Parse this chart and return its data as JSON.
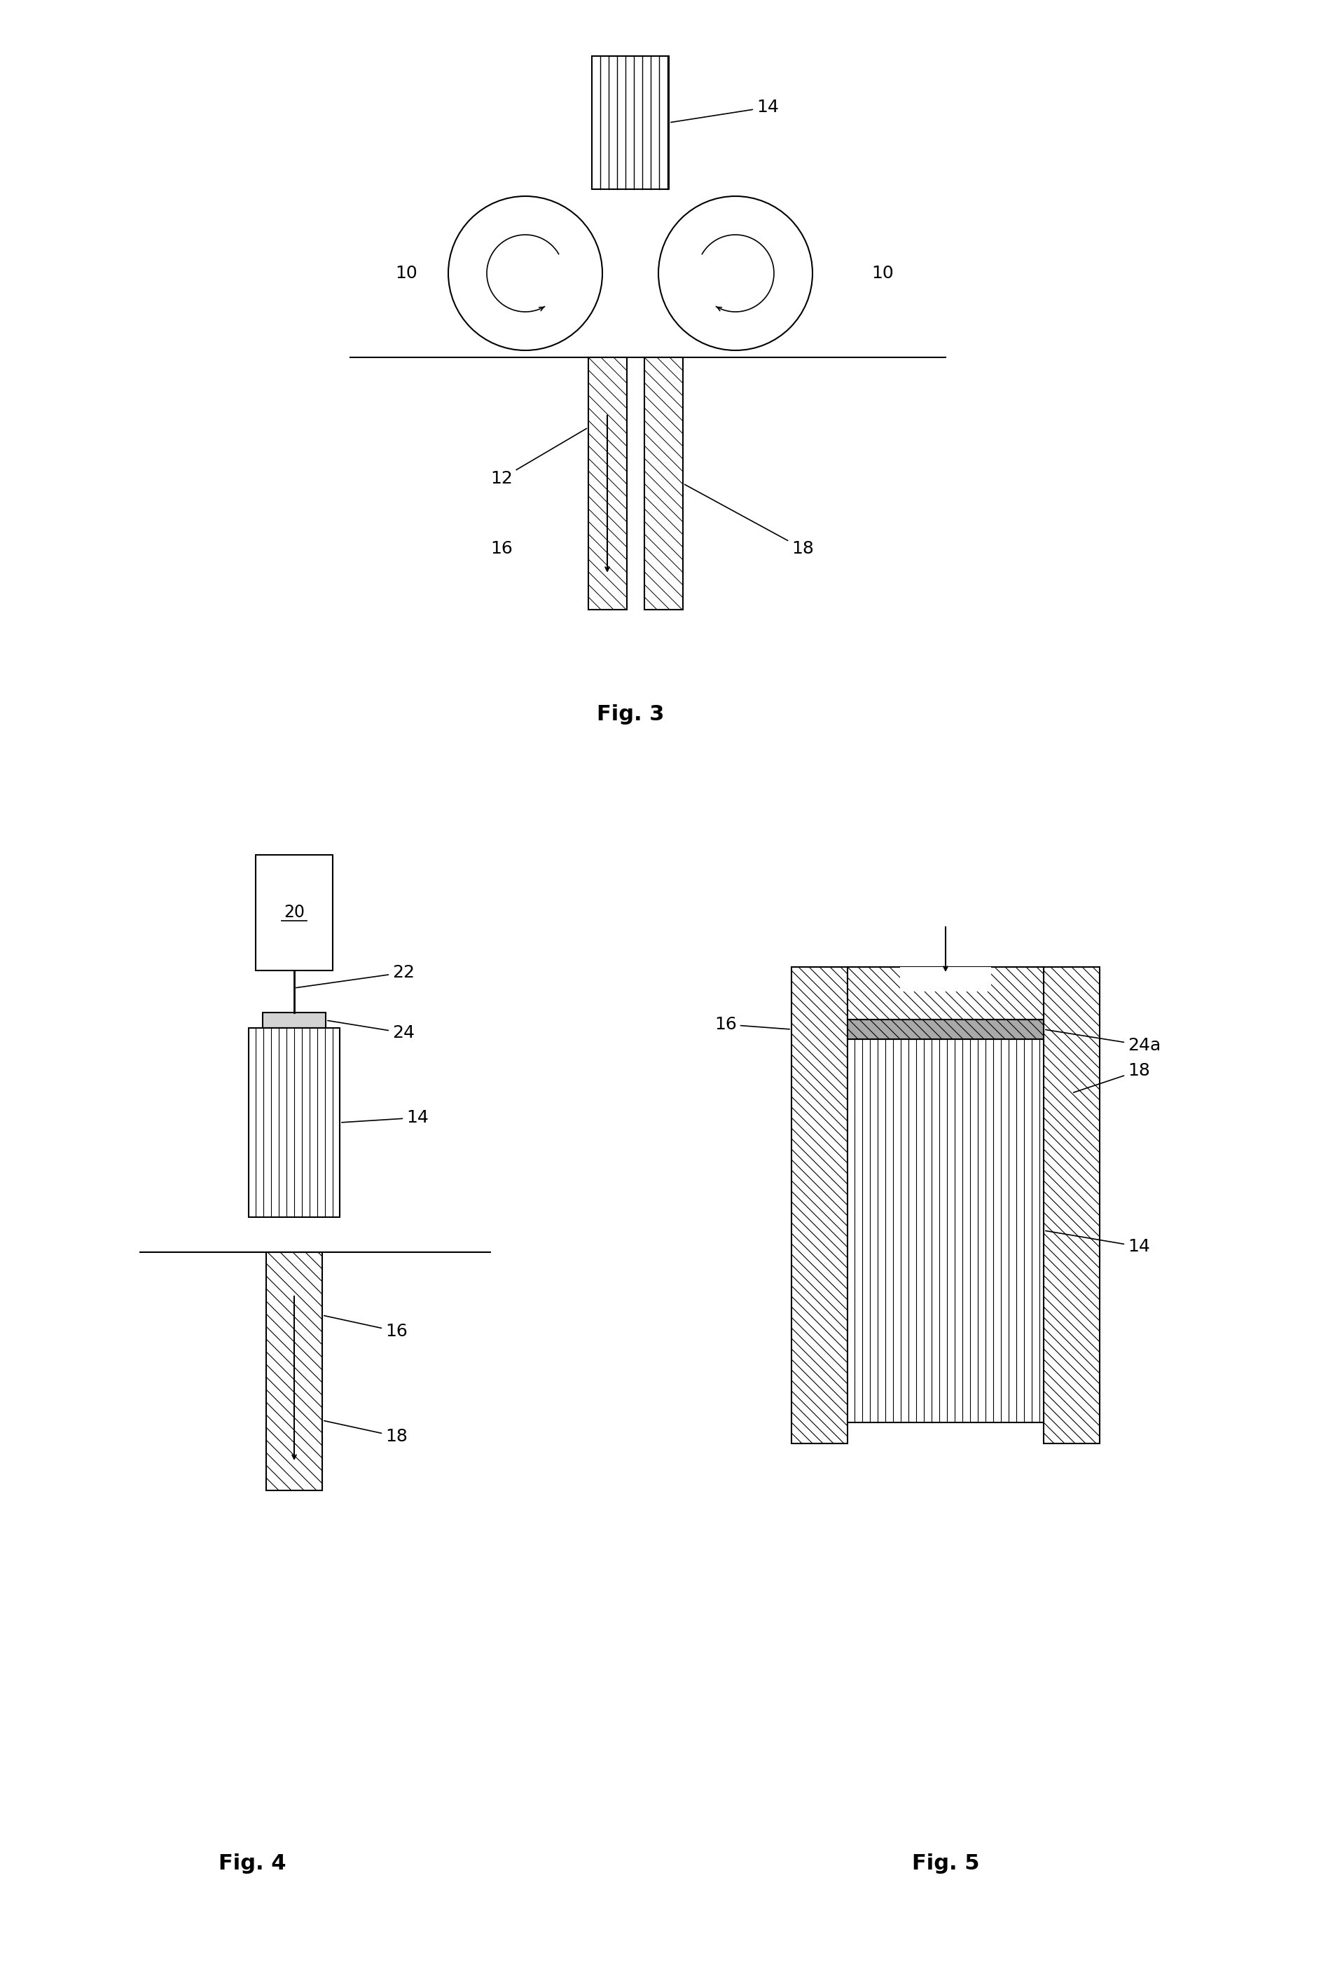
{
  "bg_color": "#ffffff",
  "fig_width": 18.86,
  "fig_height": 28.0,
  "fig3_label": "Fig. 3",
  "fig4_label": "Fig. 4",
  "fig5_label": "Fig. 5",
  "label_14_fig3": "14",
  "label_10_left": "10",
  "label_10_right": "10",
  "label_12": "12",
  "label_16_fig3": "16",
  "label_18_fig3": "18",
  "label_20": "20",
  "label_22": "22",
  "label_24": "24",
  "label_14_fig4": "14",
  "label_16_fig4": "16",
  "label_18_fig4": "18",
  "label_16_fig5": "16",
  "label_18_fig5": "18",
  "label_24a": "24a",
  "label_14_fig5": "14"
}
